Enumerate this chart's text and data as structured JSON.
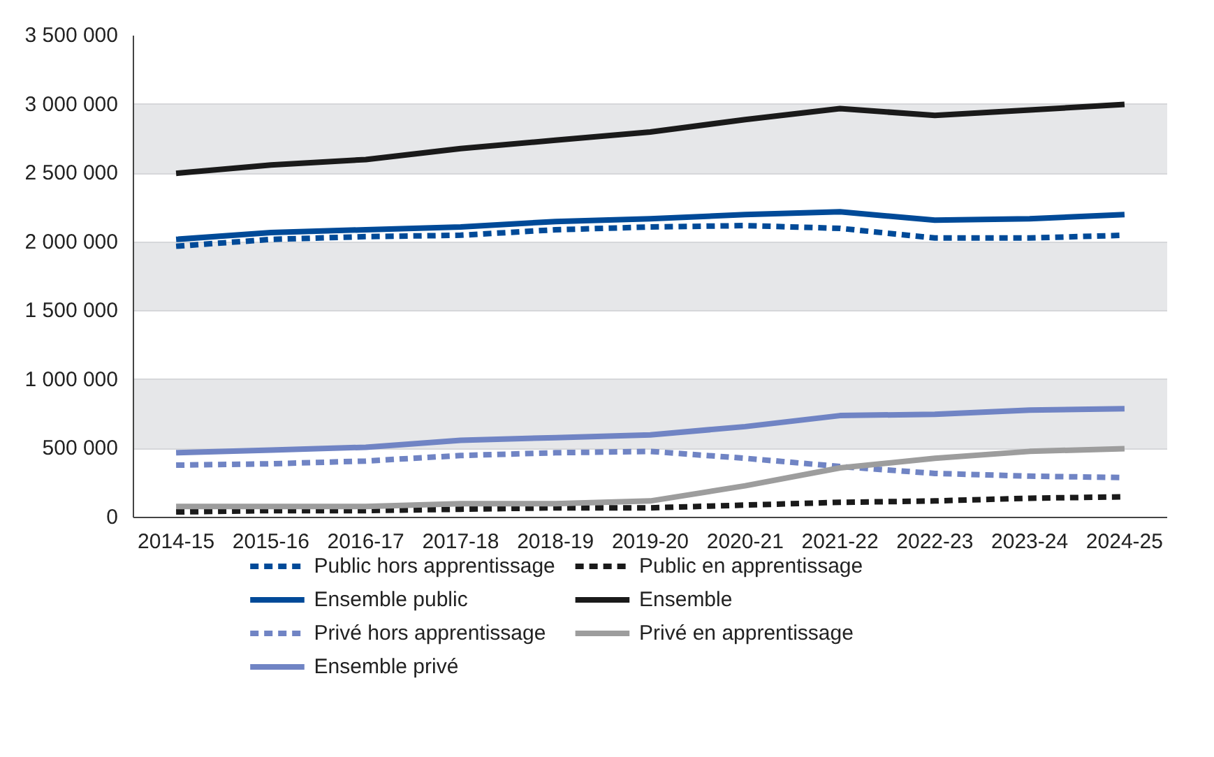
{
  "chart_data": {
    "type": "line",
    "categories": [
      "2014-15",
      "2015-16",
      "2016-17",
      "2017-18",
      "2018-19",
      "2019-20",
      "2020-21",
      "2021-22",
      "2022-23",
      "2023-24",
      "2024-25"
    ],
    "series": [
      {
        "name": "Public hors apprentissage",
        "color": "#004a98",
        "line_style": "dashed",
        "values": [
          1970000,
          2020000,
          2040000,
          2050000,
          2090000,
          2110000,
          2120000,
          2100000,
          2030000,
          2030000,
          2050000
        ]
      },
      {
        "name": "Public en apprentissage",
        "color": "#1a1a1a",
        "line_style": "dashed",
        "values": [
          40000,
          50000,
          50000,
          60000,
          70000,
          70000,
          90000,
          110000,
          120000,
          140000,
          150000
        ]
      },
      {
        "name": "Ensemble public",
        "color": "#004a98",
        "line_style": "solid",
        "values": [
          2020000,
          2070000,
          2090000,
          2110000,
          2150000,
          2170000,
          2200000,
          2220000,
          2160000,
          2170000,
          2200000
        ]
      },
      {
        "name": "Ensemble",
        "color": "#1a1a1a",
        "line_style": "solid",
        "values": [
          2500000,
          2560000,
          2600000,
          2680000,
          2740000,
          2800000,
          2890000,
          2970000,
          2920000,
          2960000,
          3000000
        ]
      },
      {
        "name": "Privé hors apprentissage",
        "color": "#7084c4",
        "line_style": "dashed",
        "values": [
          380000,
          390000,
          410000,
          450000,
          470000,
          480000,
          430000,
          370000,
          320000,
          300000,
          290000
        ]
      },
      {
        "name": "Privé en apprentissage",
        "color": "#9d9d9d",
        "line_style": "solid",
        "values": [
          80000,
          80000,
          80000,
          100000,
          100000,
          120000,
          230000,
          360000,
          430000,
          480000,
          500000
        ]
      },
      {
        "name": "Ensemble privé",
        "color": "#7084c4",
        "line_style": "solid",
        "values": [
          470000,
          490000,
          510000,
          560000,
          580000,
          600000,
          660000,
          740000,
          750000,
          780000,
          790000
        ]
      }
    ],
    "ylim": [
      0,
      3500000
    ],
    "yticks": [
      {
        "value": 0,
        "label": "0"
      },
      {
        "value": 500000,
        "label": "500 000"
      },
      {
        "value": 1000000,
        "label": "1 000 000"
      },
      {
        "value": 1500000,
        "label": "1 500 000"
      },
      {
        "value": 2000000,
        "label": "2 000 000"
      },
      {
        "value": 2500000,
        "label": "2 500 000"
      },
      {
        "value": 3000000,
        "label": "3 000 000"
      },
      {
        "value": 3500000,
        "label": "3 500 000"
      }
    ],
    "grid": "y",
    "legend": "bottom"
  }
}
